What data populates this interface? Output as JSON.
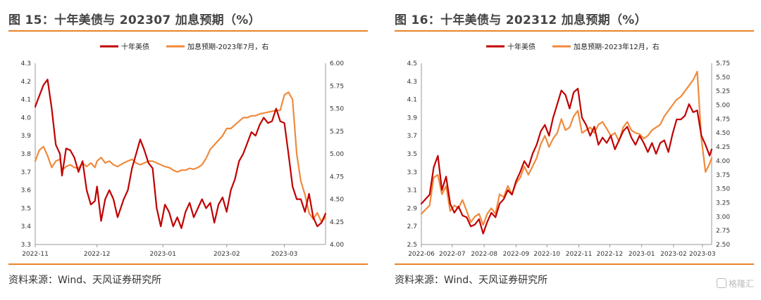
{
  "panels": [
    {
      "title": "图 15：十年美债与 202307 加息预期（%）",
      "source": "资料来源：Wind、天风证券研究所",
      "chart": {
        "type": "line",
        "left_ticks": [
          "4.3",
          "4.2",
          "4.1",
          "4.0",
          "3.9",
          "3.8",
          "3.7",
          "3.6",
          "3.5",
          "3.4",
          "3.3"
        ],
        "right_ticks": [
          "6.00",
          "5.75",
          "5.50",
          "5.25",
          "5.00",
          "4.75",
          "4.50",
          "4.25",
          "4.00"
        ],
        "x_ticks": [
          "2022-11",
          "2022-12",
          "2023-01",
          "2023-02",
          "2023-03"
        ],
        "left_range": [
          3.3,
          4.3
        ],
        "right_range": [
          4.0,
          6.0
        ],
        "x_range": [
          0,
          141
        ],
        "x_tick_positions": [
          0,
          30,
          62,
          93,
          121
        ],
        "series": [
          {
            "name": "十年美债",
            "color": "#c00000",
            "axis": "left",
            "x": [
              0,
              2,
              4,
              6,
              8,
              10,
              12,
              13,
              15,
              17,
              19,
              21,
              23,
              25,
              27,
              29,
              30,
              32,
              34,
              36,
              38,
              40,
              43,
              45,
              47,
              49,
              51,
              53,
              55,
              57,
              59,
              61,
              63,
              65,
              67,
              69,
              71,
              73,
              75,
              77,
              79,
              81,
              83,
              85,
              87,
              89,
              91,
              93,
              95,
              97,
              99,
              101,
              103,
              105,
              107,
              109,
              111,
              113,
              115,
              117,
              119,
              121,
              123,
              125,
              127,
              129,
              131,
              133,
              135,
              137,
              139,
              141
            ],
            "y": [
              4.06,
              4.12,
              4.18,
              4.21,
              4.05,
              3.85,
              3.8,
              3.68,
              3.83,
              3.82,
              3.78,
              3.7,
              3.76,
              3.6,
              3.52,
              3.54,
              3.62,
              3.43,
              3.55,
              3.6,
              3.55,
              3.45,
              3.55,
              3.6,
              3.72,
              3.8,
              3.88,
              3.82,
              3.75,
              3.72,
              3.5,
              3.4,
              3.52,
              3.48,
              3.4,
              3.45,
              3.39,
              3.48,
              3.53,
              3.45,
              3.5,
              3.55,
              3.5,
              3.53,
              3.42,
              3.52,
              3.56,
              3.48,
              3.6,
              3.66,
              3.76,
              3.8,
              3.86,
              3.92,
              3.9,
              3.96,
              4.0,
              3.97,
              3.98,
              4.05,
              3.98,
              3.97,
              3.8,
              3.62,
              3.55,
              3.55,
              3.48,
              3.58,
              3.45,
              3.4,
              3.42,
              3.47
            ]
          },
          {
            "name": "加息预期-2023年7月，右",
            "color": "#f08a3c",
            "axis": "right",
            "x": [
              0,
              2,
              4,
              6,
              8,
              10,
              12,
              13,
              15,
              17,
              19,
              21,
              23,
              25,
              27,
              29,
              30,
              32,
              34,
              36,
              38,
              40,
              43,
              45,
              47,
              49,
              51,
              53,
              55,
              57,
              59,
              61,
              63,
              65,
              67,
              69,
              71,
              73,
              75,
              77,
              79,
              81,
              83,
              85,
              87,
              89,
              91,
              93,
              95,
              97,
              99,
              101,
              103,
              105,
              107,
              109,
              111,
              113,
              115,
              117,
              119,
              121,
              123,
              125,
              127,
              129,
              131,
              133,
              135,
              137,
              139,
              141
            ],
            "y": [
              4.92,
              5.04,
              5.08,
              4.98,
              4.85,
              4.92,
              4.94,
              4.82,
              4.86,
              4.88,
              4.85,
              4.84,
              4.9,
              4.86,
              4.9,
              4.85,
              4.92,
              4.96,
              4.9,
              4.92,
              4.88,
              4.86,
              4.9,
              4.92,
              4.94,
              4.9,
              4.88,
              4.9,
              4.92,
              4.92,
              4.9,
              4.88,
              4.86,
              4.85,
              4.82,
              4.8,
              4.82,
              4.82,
              4.84,
              4.83,
              4.85,
              4.88,
              4.95,
              5.05,
              5.1,
              5.15,
              5.2,
              5.28,
              5.28,
              5.32,
              5.36,
              5.4,
              5.4,
              5.42,
              5.42,
              5.44,
              5.45,
              5.46,
              5.47,
              5.48,
              5.48,
              5.65,
              5.68,
              5.6,
              5.0,
              4.7,
              4.55,
              4.35,
              4.28,
              4.35,
              4.25,
              4.3
            ]
          }
        ]
      }
    },
    {
      "title": "图 16：十年美债与 202312 加息预期（%）",
      "source": "资料来源：Wind、天风证券研究所",
      "chart": {
        "type": "line",
        "left_ticks": [
          "4.5",
          "4.3",
          "4.1",
          "3.9",
          "3.7",
          "3.5",
          "3.3",
          "3.1",
          "2.9",
          "2.7",
          "2.5"
        ],
        "right_ticks": [
          "5.75",
          "5.50",
          "5.25",
          "5.00",
          "4.75",
          "4.50",
          "4.25",
          "4.00",
          "3.75",
          "3.50",
          "3.25",
          "3.00",
          "2.75",
          "2.50"
        ],
        "x_ticks": [
          "2022-06",
          "2022-07",
          "2022-08",
          "2022-09",
          "2022-10",
          "2022-11",
          "2022-12",
          "2023-01",
          "2023-02",
          "2023-03"
        ],
        "left_range": [
          2.5,
          4.5
        ],
        "right_range": [
          2.5,
          5.75
        ],
        "x_range": [
          0,
          282
        ],
        "x_tick_positions": [
          0,
          30,
          61,
          92,
          122,
          153,
          183,
          214,
          245,
          273
        ],
        "series": [
          {
            "name": "十年美债",
            "color": "#c00000",
            "axis": "left",
            "x": [
              0,
              8,
              12,
              16,
              20,
              24,
              28,
              32,
              36,
              40,
              44,
              48,
              52,
              56,
              60,
              64,
              68,
              72,
              76,
              80,
              84,
              88,
              92,
              96,
              100,
              104,
              108,
              112,
              116,
              120,
              124,
              128,
              132,
              136,
              140,
              144,
              148,
              152,
              156,
              160,
              164,
              168,
              172,
              176,
              180,
              184,
              188,
              192,
              196,
              200,
              204,
              208,
              212,
              216,
              220,
              224,
              228,
              232,
              236,
              240,
              244,
              248,
              252,
              256,
              260,
              264,
              268,
              272,
              276,
              280,
              282
            ],
            "y": [
              2.95,
              3.05,
              3.35,
              3.48,
              3.1,
              3.25,
              2.95,
              2.85,
              2.92,
              2.82,
              2.8,
              2.7,
              2.72,
              2.78,
              2.62,
              2.75,
              2.85,
              2.8,
              2.95,
              3.0,
              3.1,
              3.05,
              3.2,
              3.3,
              3.42,
              3.35,
              3.5,
              3.6,
              3.75,
              3.82,
              3.7,
              3.9,
              4.05,
              4.2,
              4.15,
              4.0,
              4.18,
              4.22,
              3.9,
              3.82,
              3.7,
              3.8,
              3.6,
              3.68,
              3.62,
              3.7,
              3.55,
              3.65,
              3.75,
              3.8,
              3.68,
              3.6,
              3.7,
              3.62,
              3.52,
              3.62,
              3.5,
              3.62,
              3.65,
              3.52,
              3.72,
              3.88,
              3.88,
              3.92,
              4.05,
              3.96,
              3.98,
              3.7,
              3.6,
              3.48,
              3.55
            ]
          },
          {
            "name": "加息预期-2023年12月，右",
            "color": "#f08a3c",
            "axis": "right",
            "x": [
              0,
              8,
              12,
              16,
              20,
              24,
              28,
              32,
              36,
              40,
              44,
              48,
              52,
              56,
              60,
              64,
              68,
              72,
              76,
              80,
              84,
              88,
              92,
              96,
              100,
              104,
              108,
              112,
              116,
              120,
              124,
              128,
              132,
              136,
              140,
              144,
              148,
              152,
              156,
              160,
              164,
              168,
              172,
              176,
              180,
              184,
              188,
              192,
              196,
              200,
              204,
              208,
              212,
              216,
              220,
              224,
              228,
              232,
              236,
              240,
              244,
              248,
              252,
              256,
              260,
              264,
              268,
              272,
              276,
              280,
              282
            ],
            "y": [
              3.05,
              3.2,
              3.7,
              3.75,
              3.4,
              3.55,
              3.1,
              3.2,
              3.15,
              3.3,
              3.1,
              2.9,
              3.0,
              3.05,
              2.85,
              3.05,
              3.15,
              3.05,
              3.4,
              3.35,
              3.55,
              3.4,
              3.6,
              3.7,
              3.9,
              3.75,
              3.9,
              4.05,
              4.3,
              4.45,
              4.25,
              4.4,
              4.5,
              4.75,
              4.55,
              4.6,
              4.8,
              4.9,
              4.5,
              4.55,
              4.6,
              4.5,
              4.65,
              4.7,
              4.58,
              4.45,
              4.5,
              4.35,
              4.6,
              4.7,
              4.55,
              4.5,
              4.48,
              4.4,
              4.45,
              4.55,
              4.6,
              4.65,
              4.8,
              4.9,
              5.0,
              5.1,
              5.15,
              5.25,
              5.35,
              5.45,
              5.6,
              4.4,
              3.8,
              3.95,
              4.05
            ]
          }
        ]
      }
    }
  ]
}
